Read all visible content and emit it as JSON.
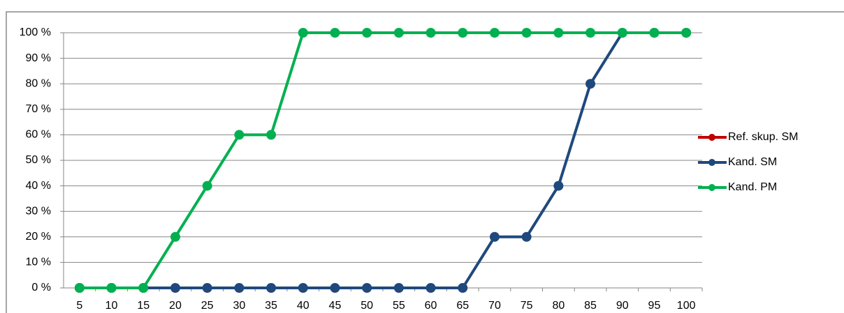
{
  "chart_data": {
    "type": "line",
    "categories": [
      "5",
      "10",
      "15",
      "20",
      "25",
      "30",
      "35",
      "40",
      "45",
      "50",
      "55",
      "60",
      "65",
      "70",
      "75",
      "80",
      "85",
      "90",
      "95",
      "100"
    ],
    "series": [
      {
        "name": "Ref. skup. SM",
        "color": "#c00000",
        "values": [
          null,
          null,
          null,
          null,
          null,
          null,
          null,
          null,
          null,
          null,
          null,
          null,
          null,
          null,
          null,
          null,
          null,
          null,
          null,
          null
        ]
      },
      {
        "name": "Kand. SM",
        "color": "#1f497d",
        "values": [
          0,
          0,
          0,
          0,
          0,
          0,
          0,
          0,
          0,
          0,
          0,
          0,
          0,
          20,
          20,
          40,
          80,
          100,
          100,
          100
        ]
      },
      {
        "name": "Kand. PM",
        "color": "#00b050",
        "values": [
          0,
          0,
          0,
          20,
          40,
          60,
          60,
          100,
          100,
          100,
          100,
          100,
          100,
          100,
          100,
          100,
          100,
          100,
          100,
          100
        ]
      }
    ],
    "ylim": [
      0,
      100
    ],
    "yticks": [
      {
        "value": 0,
        "label": "0 %"
      },
      {
        "value": 10,
        "label": "10 %"
      },
      {
        "value": 20,
        "label": "20 %"
      },
      {
        "value": 30,
        "label": "30 %"
      },
      {
        "value": 40,
        "label": "40 %"
      },
      {
        "value": 50,
        "label": "50 %"
      },
      {
        "value": 60,
        "label": "60 %"
      },
      {
        "value": 70,
        "label": "70 %"
      },
      {
        "value": 80,
        "label": "80 %"
      },
      {
        "value": 90,
        "label": "90 %"
      },
      {
        "value": 100,
        "label": "100 %"
      }
    ],
    "grid": true,
    "legend": "right"
  }
}
